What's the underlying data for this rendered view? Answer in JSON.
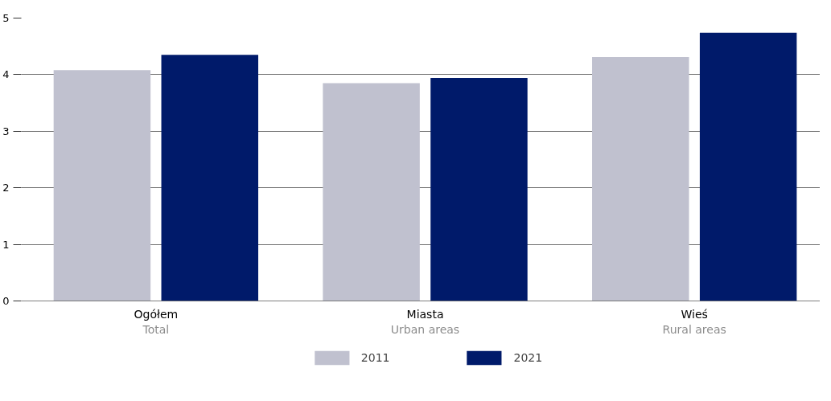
{
  "chart_data": {
    "type": "bar",
    "categories": [
      "Ogółem\nTotal",
      "Miasta\nUrban areas",
      "Wieś\nRural areas"
    ],
    "series": [
      {
        "name": "2011",
        "color": "#c0c1cf",
        "values": [
          4.08,
          3.85,
          4.31
        ]
      },
      {
        "name": "2021",
        "color": "#001a6a",
        "values": [
          4.35,
          3.94,
          4.74
        ]
      }
    ],
    "ylim": [
      0,
      5
    ],
    "yticks": [
      0,
      1,
      2,
      3,
      4,
      5
    ],
    "grid": "y",
    "legend": "bottom"
  }
}
